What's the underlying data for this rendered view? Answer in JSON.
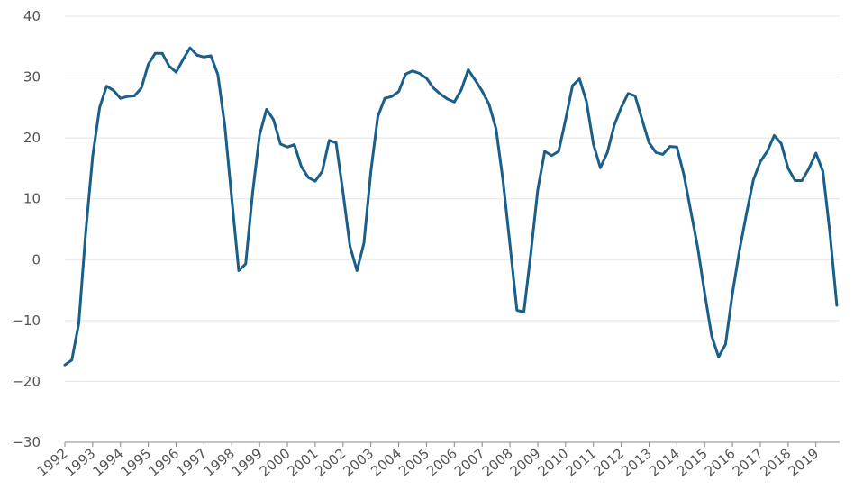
{
  "chart_data": {
    "type": "line",
    "title": "",
    "xlabel": "",
    "ylabel": "",
    "ylim": [
      -30,
      40
    ],
    "y_ticks": [
      -30,
      -20,
      -10,
      0,
      10,
      20,
      30,
      40
    ],
    "y_tick_labels": [
      "−30",
      "−20",
      "−10",
      "0",
      "10",
      "20",
      "30",
      "40"
    ],
    "xlim": [
      1992,
      2019.85
    ],
    "x_ticks": [
      1992,
      1993,
      1994,
      1995,
      1996,
      1997,
      1998,
      1999,
      2000,
      2001,
      2002,
      2003,
      2004,
      2005,
      2006,
      2007,
      2008,
      2009,
      2010,
      2011,
      2012,
      2013,
      2014,
      2015,
      2016,
      2017,
      2018,
      2019
    ],
    "x_tick_labels": [
      "1992",
      "1993",
      "1994",
      "1995",
      "1996",
      "1997",
      "1998",
      "1999",
      "2000",
      "2001",
      "2002",
      "2003",
      "2004",
      "2005",
      "2006",
      "2007",
      "2008",
      "2009",
      "2010",
      "2011",
      "2012",
      "2013",
      "2014",
      "2015",
      "2016",
      "2017",
      "2018",
      "2019"
    ],
    "grid": true,
    "legend": "none",
    "color": "#1a5e8a",
    "series": [
      {
        "x": [
          1992.0,
          1992.25,
          1992.5,
          1992.75,
          1993.0,
          1993.25,
          1993.5,
          1993.75,
          1994.0,
          1994.25,
          1994.5,
          1994.75,
          1995.0,
          1995.25,
          1995.5,
          1995.75,
          1996.0,
          1996.25,
          1996.5,
          1996.75,
          1997.0,
          1997.25,
          1997.5,
          1997.75,
          1998.0,
          1998.25,
          1998.5,
          1998.75,
          1999.0,
          1999.25,
          1999.5,
          1999.75,
          2000.0,
          2000.25,
          2000.5,
          2000.75,
          2001.0,
          2001.25,
          2001.5,
          2001.75,
          2002.0,
          2002.25,
          2002.5,
          2002.75,
          2003.0,
          2003.25,
          2003.5,
          2003.75,
          2004.0,
          2004.25,
          2004.5,
          2004.75,
          2005.0,
          2005.25,
          2005.5,
          2005.75,
          2006.0,
          2006.25,
          2006.5,
          2006.75,
          2007.0,
          2007.25,
          2007.5,
          2007.75,
          2008.0,
          2008.25,
          2008.5,
          2008.75,
          2009.0,
          2009.25,
          2009.5,
          2009.75,
          2010.0,
          2010.25,
          2010.5,
          2010.75,
          2011.0,
          2011.25,
          2011.5,
          2011.75,
          2012.0,
          2012.25,
          2012.5,
          2012.75,
          2013.0,
          2013.25,
          2013.5,
          2013.75,
          2014.0,
          2014.25,
          2014.5,
          2014.75,
          2015.0,
          2015.25,
          2015.5,
          2015.75,
          2016.0,
          2016.25,
          2016.5,
          2016.75,
          2017.0,
          2017.25,
          2017.5,
          2017.75,
          2018.0,
          2018.25,
          2018.5,
          2018.75,
          2019.0,
          2019.25,
          2019.5,
          2019.75
        ],
        "values": [
          -17.3,
          -16.5,
          -10.5,
          4.5,
          17,
          25,
          28.5,
          27.8,
          26.5,
          26.8,
          26.9,
          28.2,
          32.1,
          33.9,
          33.9,
          31.8,
          30.8,
          32.9,
          34.8,
          33.6,
          33.3,
          33.5,
          30.4,
          22,
          10,
          -1.8,
          -0.7,
          11,
          20.5,
          24.7,
          23.0,
          19.0,
          18.5,
          18.9,
          15.3,
          13.5,
          12.9,
          14.5,
          19.6,
          19.2,
          11.0,
          2.2,
          -1.8,
          2.7,
          14.5,
          23.5,
          26.5,
          26.8,
          27.6,
          30.5,
          31.0,
          30.6,
          29.8,
          28.2,
          27.2,
          26.4,
          25.9,
          27.9,
          31.2,
          29.5,
          27.7,
          25.5,
          21.5,
          13.0,
          2.5,
          -8.3,
          -8.6,
          1.0,
          11.5,
          17.8,
          17.1,
          17.8,
          23,
          28.6,
          29.7,
          26.0,
          19.0,
          15.1,
          17.6,
          22.1,
          25.0,
          27.3,
          26.9,
          23.0,
          19.2,
          17.6,
          17.3,
          18.6,
          18.5,
          14.0,
          8.0,
          2.0,
          -5.5,
          -12.5,
          -16.0,
          -13.9,
          -5.5,
          1.5,
          7.5,
          13.1,
          16.1,
          17.8,
          20.4,
          19.1,
          15.0,
          13.0,
          13.0,
          15.0,
          17.5,
          14.5,
          4.5,
          -7.5
        ]
      }
    ]
  }
}
